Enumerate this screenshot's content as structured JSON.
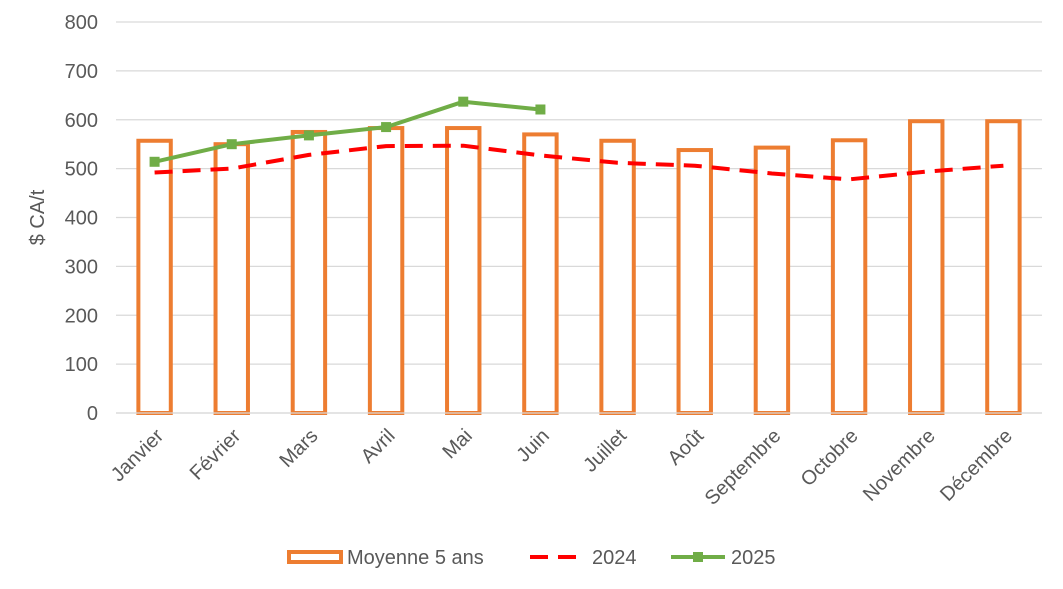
{
  "chart_data": {
    "type": "bar",
    "categories": [
      "Janvier",
      "Février",
      "Mars",
      "Avril",
      "Mai",
      "Juin",
      "Juillet",
      "Août",
      "Septembre",
      "Octobre",
      "Novembre",
      "Décembre"
    ],
    "ylabel": "$ CA/t",
    "xlabel": "",
    "ylim": [
      0,
      800
    ],
    "yticks": [
      "0",
      "100",
      "200",
      "300",
      "400",
      "500",
      "600",
      "700",
      "800"
    ],
    "grid": "horizontal",
    "legend_position": "bottom",
    "series": [
      {
        "name": "Moyenne 5 ans",
        "type": "bar",
        "style": "outline",
        "color": "#ED7D31",
        "values": [
          557,
          550,
          575,
          583,
          583,
          570,
          557,
          538,
          543,
          558,
          597,
          597
        ]
      },
      {
        "name": "2024",
        "type": "line",
        "style": "dashed",
        "color": "#FF0000",
        "values": [
          492,
          500,
          528,
          546,
          547,
          527,
          512,
          506,
          490,
          478,
          494,
          506
        ]
      },
      {
        "name": "2025",
        "type": "line",
        "style": "solid-markers",
        "color": "#70AD47",
        "values": [
          514,
          550,
          568,
          585,
          637,
          621,
          null,
          null,
          null,
          null,
          null,
          null
        ]
      }
    ]
  }
}
